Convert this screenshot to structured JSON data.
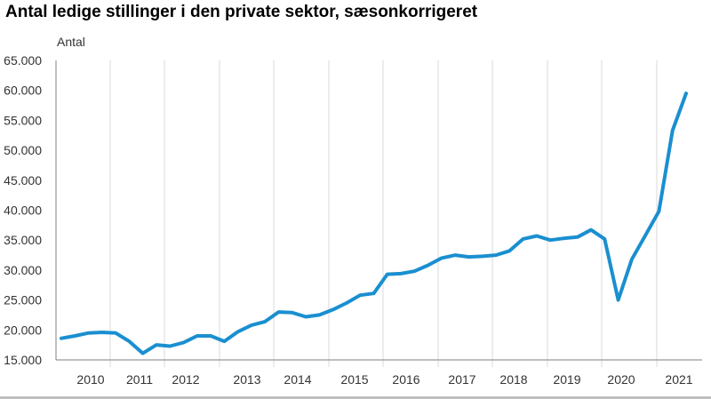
{
  "page_title": "Antal ledige stillinger i den private sektor, sæsonkorrigeret",
  "chart_data": {
    "type": "line",
    "title": "Antal ledige stillinger i den private sektor, sæsonkorrigeret",
    "ylabel": "Antal",
    "xlabel": "",
    "ylim": [
      15000,
      65000
    ],
    "y_ticks": [
      15000,
      20000,
      25000,
      30000,
      35000,
      40000,
      45000,
      50000,
      55000,
      60000,
      65000
    ],
    "y_tick_labels": [
      "15.000",
      "20.000",
      "25.000",
      "30.000",
      "35.000",
      "40.000",
      "45.000",
      "50.000",
      "55.000",
      "60.000",
      "65.000"
    ],
    "x_tick_labels": [
      "2010",
      "2011",
      "2012",
      "2013",
      "2014",
      "2015",
      "2016",
      "2017",
      "2018",
      "2019",
      "2020",
      "2021"
    ],
    "grid": "vertical",
    "line_color": "#1a8fd0",
    "series": [
      {
        "values": [
          18600,
          19000,
          19500,
          19600,
          19500,
          18100,
          16100,
          17500,
          17300,
          17900,
          19000,
          19000,
          18100,
          19700,
          20800,
          21400,
          23000,
          22900,
          22200,
          22500,
          23400,
          24500,
          25800,
          26100,
          29300,
          29400,
          29800,
          30800,
          32000,
          32500,
          32200,
          32300,
          32500,
          33200,
          35200,
          35700,
          35000,
          35300,
          35500,
          36700,
          35200,
          25000,
          31800,
          35800,
          39800,
          53300,
          59500
        ]
      }
    ]
  }
}
